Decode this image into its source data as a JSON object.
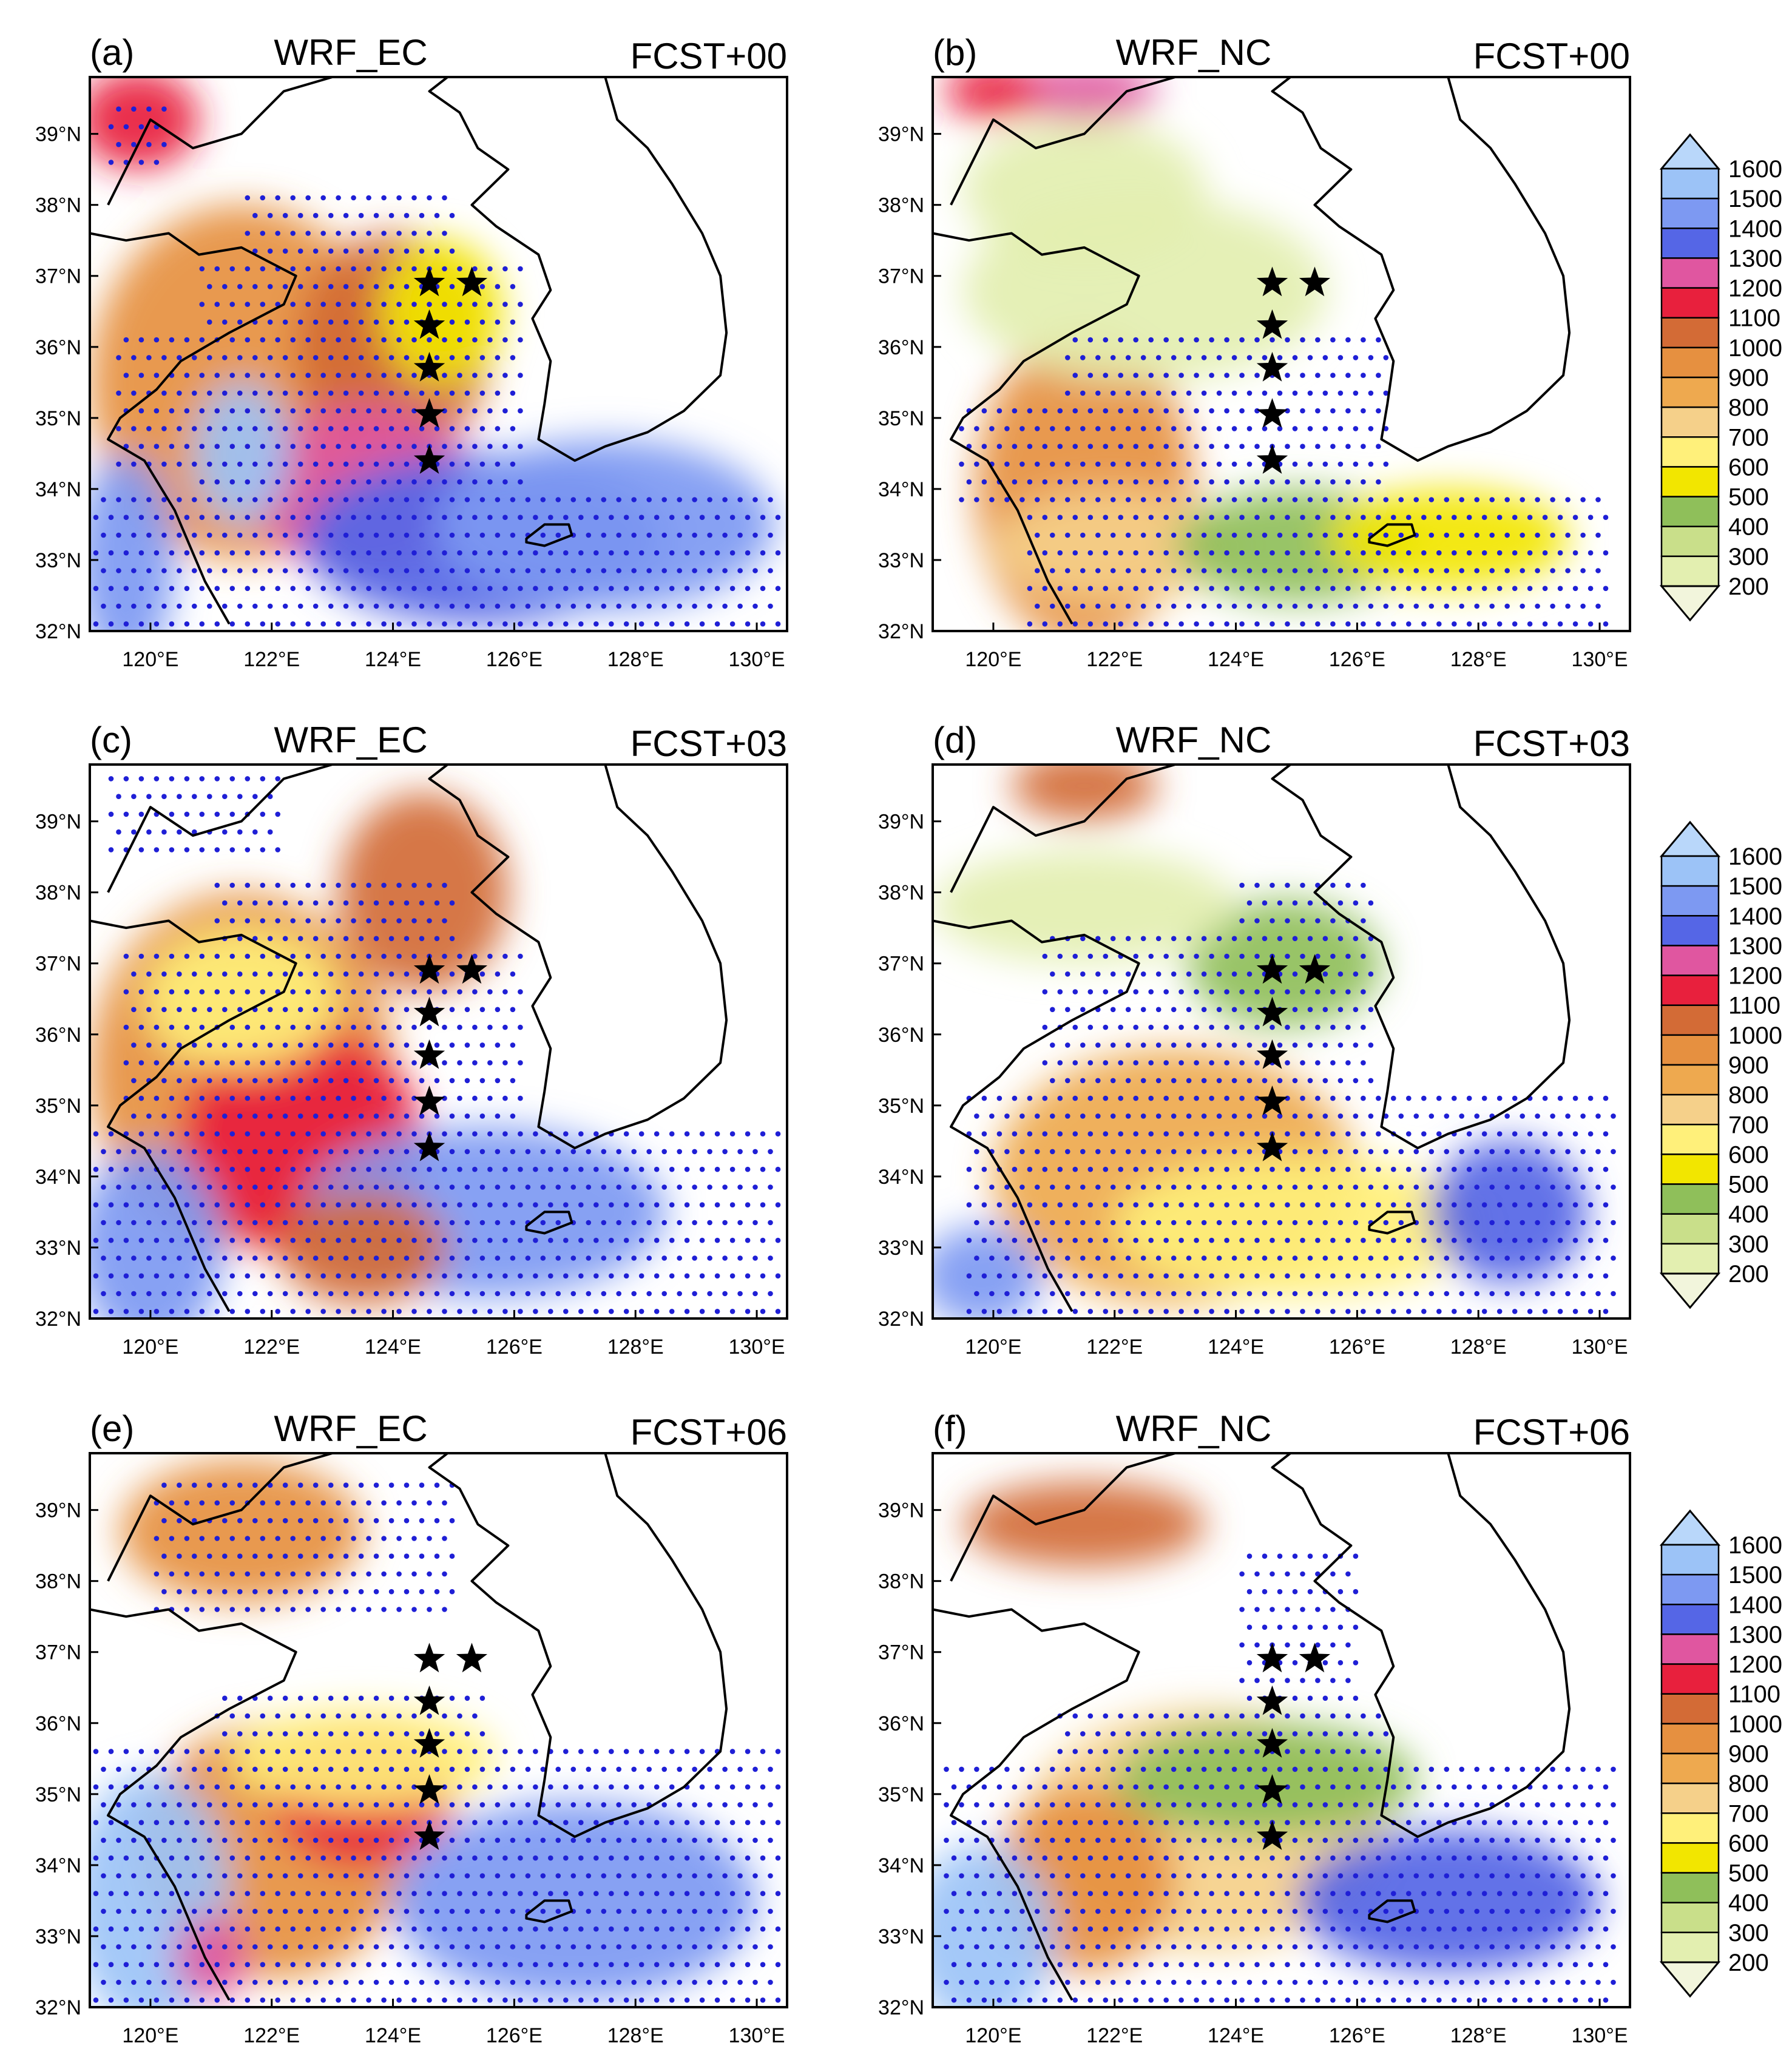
{
  "chart_data": {
    "type": "heatmap",
    "description_units": "shaded field with dot stippling; colorbar levels as printed",
    "xlim": [
      119,
      130.5
    ],
    "ylim": [
      32,
      39.8
    ],
    "x_ticks": [
      120,
      122,
      124,
      126,
      128,
      130
    ],
    "x_tick_labels": [
      "120°E",
      "122°E",
      "124°E",
      "126°E",
      "128°E",
      "130°E"
    ],
    "y_ticks": [
      32,
      33,
      34,
      35,
      36,
      37,
      38,
      39
    ],
    "y_tick_labels": [
      "32°N",
      "33°N",
      "34°N",
      "35°N",
      "36°N",
      "37°N",
      "38°N",
      "39°N"
    ],
    "colorbar": {
      "levels": [
        200,
        300,
        400,
        500,
        600,
        700,
        800,
        900,
        1000,
        1100,
        1200,
        1300,
        1400,
        1500,
        1600
      ],
      "level_labels": [
        "200",
        "300",
        "400",
        "500",
        "600",
        "700",
        "800",
        "900",
        "1000",
        "1100",
        "1200",
        "1300",
        "1400",
        "1500",
        "1600"
      ],
      "colors": [
        "#f2f5dc",
        "#e3efb0",
        "#c9df8a",
        "#8fbf5a",
        "#f2e600",
        "#fff07a",
        "#f5d08a",
        "#eea94f",
        "#e69040",
        "#d36b36",
        "#e8203d",
        "#e056a0",
        "#5566e6",
        "#7d99f2",
        "#9cc3f7",
        "#b9d7fa"
      ]
    },
    "stations": [
      {
        "lon": 124.6,
        "lat": 36.9
      },
      {
        "lon": 125.3,
        "lat": 36.9
      },
      {
        "lon": 124.6,
        "lat": 36.3
      },
      {
        "lon": 124.6,
        "lat": 35.7
      },
      {
        "lon": 124.6,
        "lat": 35.05
      },
      {
        "lon": 124.6,
        "lat": 34.4
      }
    ],
    "panels": [
      {
        "label": "(a)",
        "model": "WRF_EC",
        "forecast": "FCST+00"
      },
      {
        "label": "(b)",
        "model": "WRF_NC",
        "forecast": "FCST+00"
      },
      {
        "label": "(c)",
        "model": "WRF_EC",
        "forecast": "FCST+03"
      },
      {
        "label": "(d)",
        "model": "WRF_NC",
        "forecast": "FCST+03"
      },
      {
        "label": "(e)",
        "model": "WRF_EC",
        "forecast": "FCST+06"
      },
      {
        "label": "(f)",
        "model": "WRF_NC",
        "forecast": "FCST+06"
      }
    ]
  }
}
